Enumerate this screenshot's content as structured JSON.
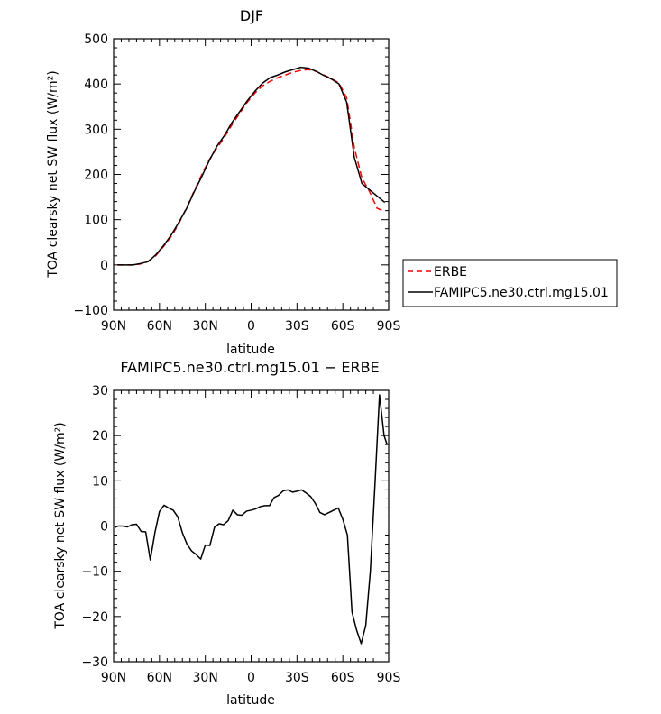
{
  "chart_data": [
    {
      "type": "line",
      "title": "DJF",
      "xlabel": "latitude",
      "ylabel": "TOA clearsky net SW flux (W/m²)",
      "xlim": [
        -90,
        90
      ],
      "ylim": [
        -100,
        500
      ],
      "x_ticks": [
        -90,
        -60,
        -30,
        0,
        30,
        60,
        90
      ],
      "x_tick_labels": [
        "90N",
        "60N",
        "30N",
        "0",
        "30S",
        "60S",
        "90S"
      ],
      "y_ticks": [
        -100,
        0,
        100,
        200,
        300,
        400,
        500
      ],
      "y_tick_labels": [
        "−100",
        "0",
        "100",
        "200",
        "300",
        "400",
        "500"
      ],
      "legend": {
        "placement": "right",
        "entries": [
          "ERBE",
          "FAMIPC5.ne30.ctrl.mg15.01"
        ]
      },
      "series": [
        {
          "name": "ERBE",
          "color": "#ff0000",
          "dash": "dashed",
          "x": [
            -87.5,
            -82.5,
            -77.5,
            -72.5,
            -67.5,
            -62.5,
            -57.5,
            -52.5,
            -47.5,
            -42.5,
            -37.5,
            -32.5,
            -27.5,
            -22.5,
            -17.5,
            -12.5,
            -7.5,
            -2.5,
            2.5,
            7.5,
            12.5,
            17.5,
            22.5,
            27.5,
            32.5,
            37.5,
            42.5,
            47.5,
            52.5,
            57.5,
            62.5,
            67.5,
            72.5,
            77.5,
            82.5,
            87.5
          ],
          "y": [
            0,
            0,
            0,
            2,
            8,
            20,
            40,
            62,
            90,
            125,
            162,
            198,
            232,
            258,
            282,
            310,
            335,
            360,
            380,
            396,
            406,
            414,
            420,
            426,
            430,
            432,
            428,
            420,
            412,
            402,
            370,
            260,
            192,
            162,
            125,
            118
          ]
        },
        {
          "name": "FAMIPC5.ne30.ctrl.mg15.01",
          "color": "#000000",
          "dash": "solid",
          "x": [
            -87.5,
            -82.5,
            -77.5,
            -72.5,
            -67.5,
            -62.5,
            -57.5,
            -52.5,
            -47.5,
            -42.5,
            -37.5,
            -32.5,
            -27.5,
            -22.5,
            -17.5,
            -12.5,
            -7.5,
            -2.5,
            2.5,
            7.5,
            12.5,
            17.5,
            22.5,
            27.5,
            32.5,
            37.5,
            42.5,
            47.5,
            52.5,
            57.5,
            62.5,
            67.5,
            72.5,
            77.5,
            82.5,
            87.5
          ],
          "y": [
            0,
            0,
            0,
            3,
            7,
            22,
            42,
            65,
            93,
            123,
            160,
            194,
            230,
            262,
            286,
            315,
            339,
            363,
            384,
            402,
            414,
            420,
            427,
            432,
            437,
            435,
            428,
            419,
            411,
            400,
            360,
            238,
            180,
            166,
            152,
            138
          ]
        }
      ]
    },
    {
      "type": "line",
      "title": "FAMIPC5.ne30.ctrl.mg15.01 − ERBE",
      "xlabel": "latitude",
      "ylabel": "TOA clearsky net SW flux (W/m²)",
      "xlim": [
        -90,
        90
      ],
      "ylim": [
        -30,
        30
      ],
      "x_ticks": [
        -90,
        -60,
        -30,
        0,
        30,
        60,
        90
      ],
      "x_tick_labels": [
        "90N",
        "60N",
        "30N",
        "0",
        "30S",
        "60S",
        "90S"
      ],
      "y_ticks": [
        -30,
        -20,
        -10,
        0,
        10,
        20,
        30
      ],
      "y_tick_labels": [
        "−30",
        "−20",
        "−10",
        "0",
        "10",
        "20",
        "30"
      ],
      "series": [
        {
          "color": "#000000",
          "dash": "solid",
          "x": [
            -89,
            -87,
            -84,
            -81,
            -78,
            -75,
            -72,
            -69,
            -66,
            -63,
            -60,
            -57,
            -54,
            -51,
            -48,
            -45,
            -42,
            -39,
            -36,
            -33,
            -30,
            -27,
            -24,
            -21,
            -18,
            -15,
            -12,
            -9,
            -6,
            -3,
            0,
            3,
            6,
            9,
            12,
            15,
            18,
            21,
            24,
            27,
            30,
            33,
            36,
            39,
            42,
            45,
            48,
            51,
            54,
            57,
            60,
            63,
            66,
            69,
            72,
            75,
            78,
            81,
            84,
            87,
            89
          ],
          "y": [
            -0.3,
            0,
            0,
            -0.2,
            0.3,
            0.4,
            -1.2,
            -1.3,
            -7.5,
            -1.5,
            3.2,
            4.6,
            4.0,
            3.5,
            2.0,
            -1.5,
            -4.0,
            -5.5,
            -6.3,
            -7.3,
            -4.2,
            -4.3,
            -0.3,
            0.5,
            0.3,
            1.2,
            3.5,
            2.5,
            2.4,
            3.3,
            3.5,
            3.8,
            4.3,
            4.5,
            4.5,
            6.3,
            6.8,
            7.8,
            8.0,
            7.5,
            7.7,
            8.0,
            7.3,
            6.5,
            5.0,
            3.0,
            2.5,
            3.0,
            3.5,
            4.0,
            1.5,
            -2.0,
            -19.0,
            -23.0,
            -26.0,
            -22.0,
            -10.0,
            9.0,
            29.0,
            20.0,
            18.0
          ]
        }
      ]
    }
  ]
}
